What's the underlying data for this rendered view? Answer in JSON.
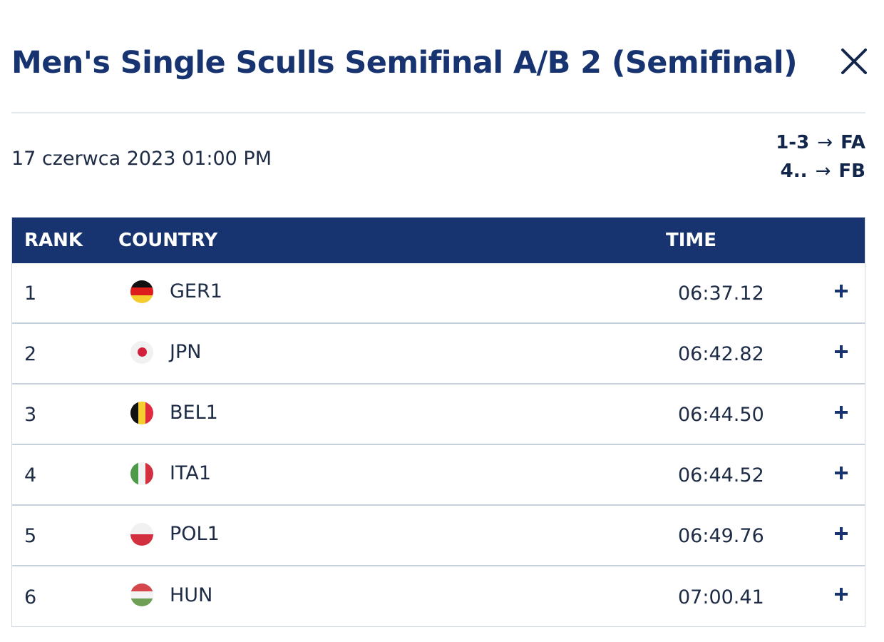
{
  "title": "Men's Single Sculls Semifinal A/B 2 (Semifinal)",
  "datetime": "17 czerwca 2023 01:00 PM",
  "progression": [
    {
      "range": "1-3",
      "arrow": "→",
      "target": "FA"
    },
    {
      "range": "4..",
      "arrow": "→",
      "target": "FB"
    }
  ],
  "table": {
    "headers": {
      "rank": "RANK",
      "country": "COUNTRY",
      "time": "TIME"
    },
    "rows": [
      {
        "rank": "1",
        "country": "GER1",
        "time": "06:37.12",
        "flag": "germany-flag"
      },
      {
        "rank": "2",
        "country": "JPN",
        "time": "06:42.82",
        "flag": "japan-flag"
      },
      {
        "rank": "3",
        "country": "BEL1",
        "time": "06:44.50",
        "flag": "belgium-flag"
      },
      {
        "rank": "4",
        "country": "ITA1",
        "time": "06:44.52",
        "flag": "italy-flag"
      },
      {
        "rank": "5",
        "country": "POL1",
        "time": "06:49.76",
        "flag": "poland-flag"
      },
      {
        "rank": "6",
        "country": "HUN",
        "time": "07:00.41",
        "flag": "hungary-flag"
      }
    ]
  },
  "icons": {
    "close": "close-icon",
    "expand": "plus-icon"
  },
  "colors": {
    "brand": "#173471",
    "text": "#1d2b45"
  }
}
